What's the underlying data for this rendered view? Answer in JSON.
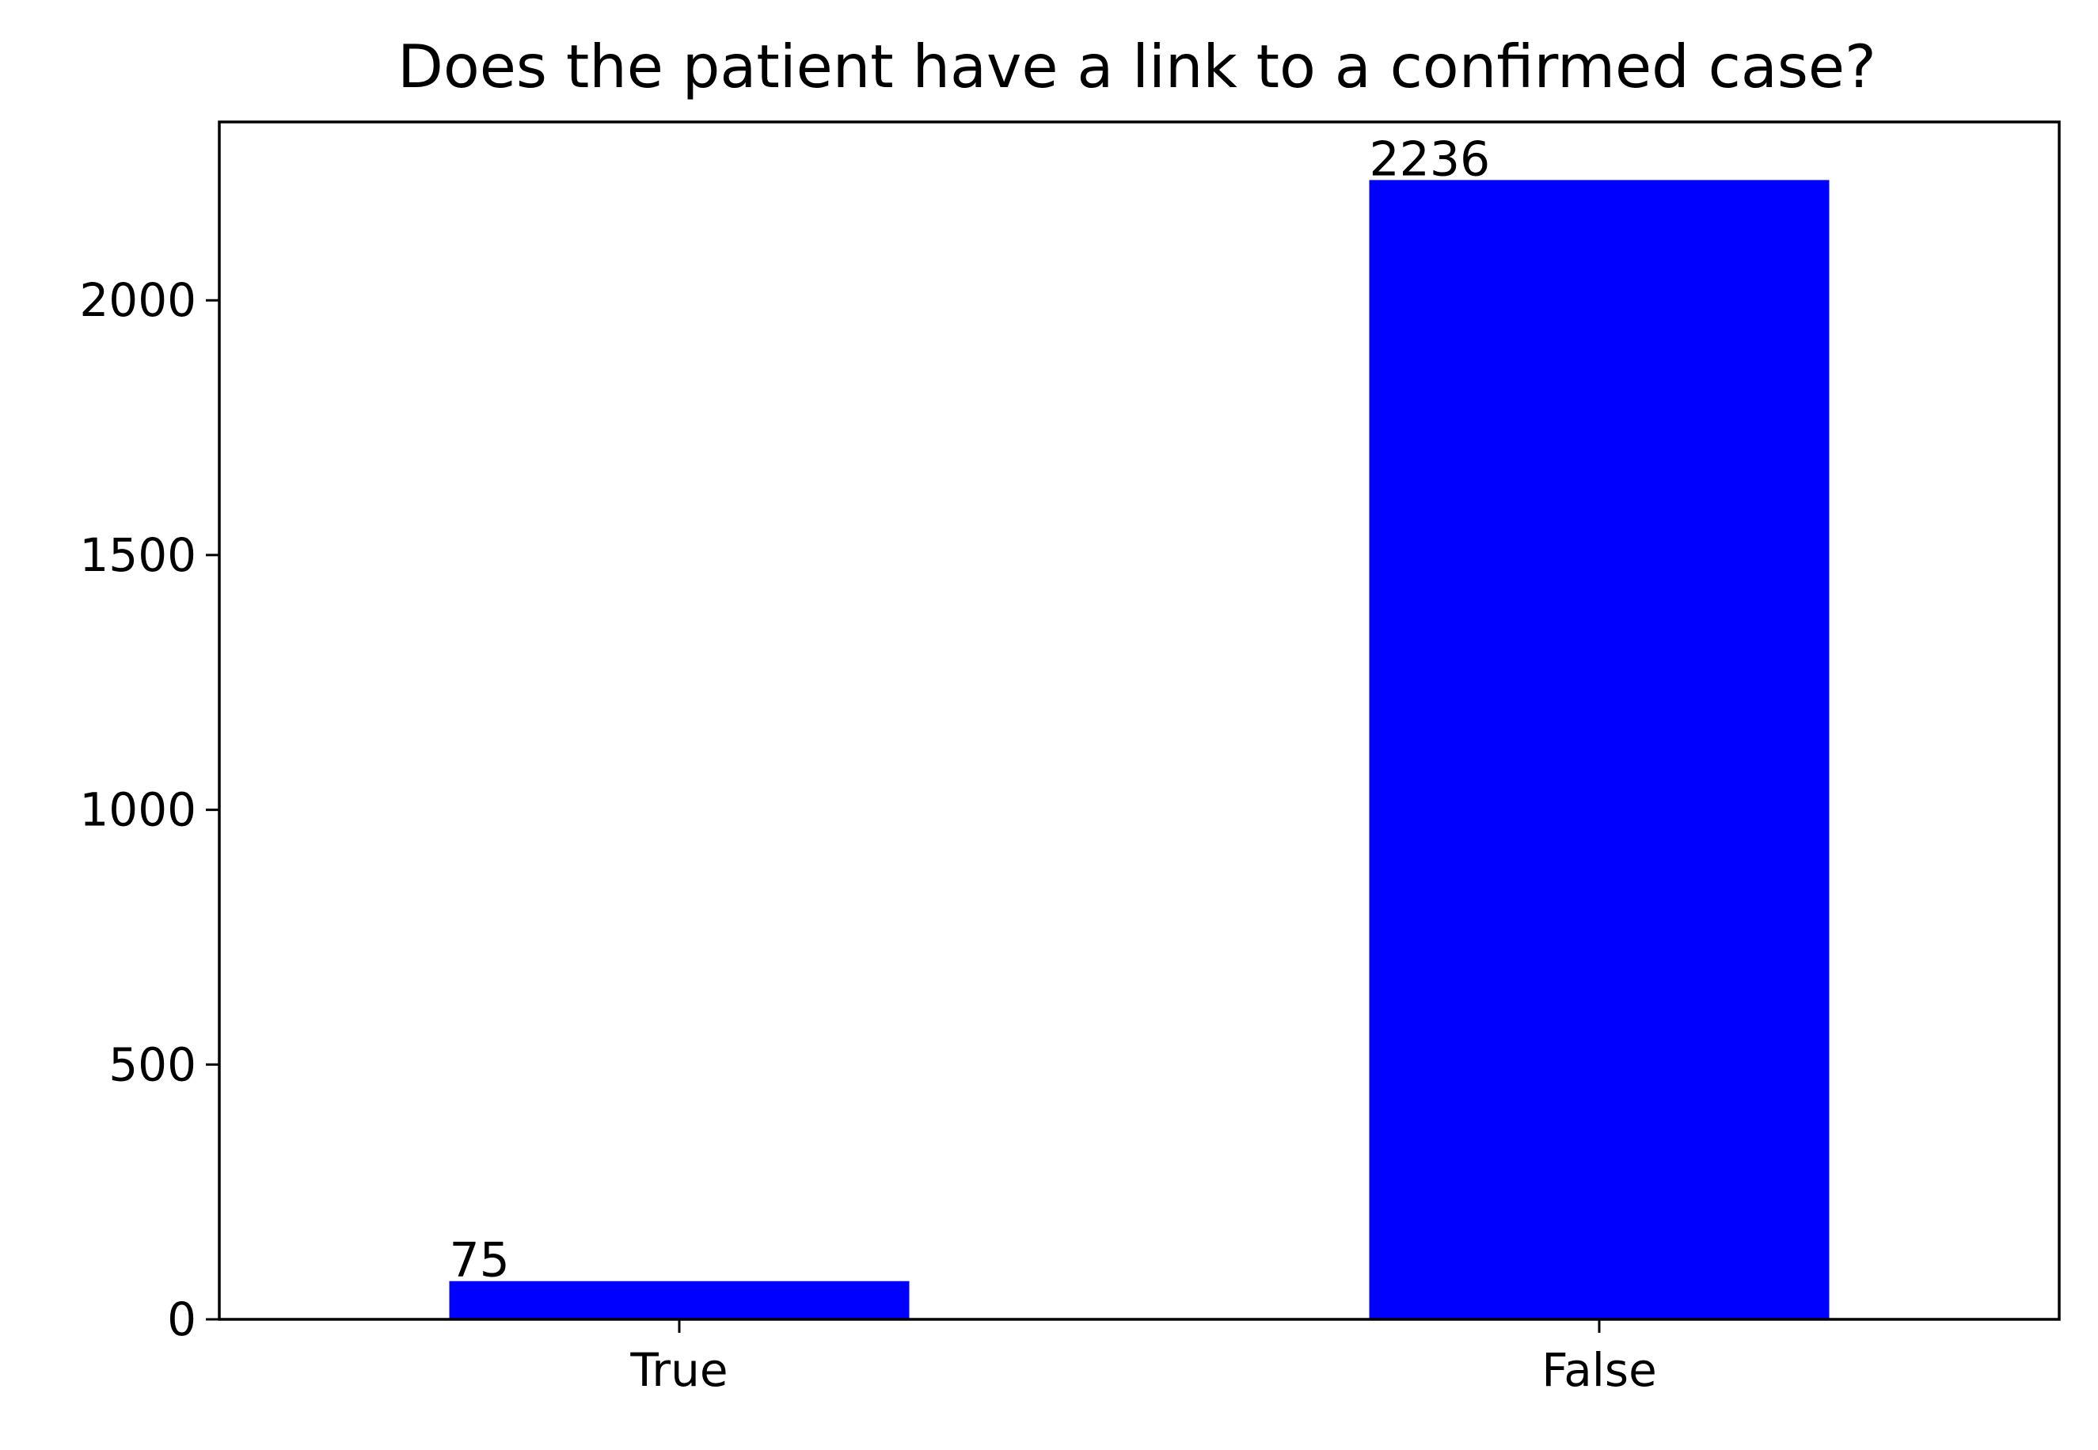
{
  "chart_data": {
    "type": "bar",
    "title": "Does the patient have a link to a confirmed case?",
    "xlabel": "",
    "ylabel": "",
    "categories": [
      "True",
      "False"
    ],
    "values": [
      75,
      2236
    ],
    "data_labels": [
      "75",
      "2236"
    ],
    "ylim": [
      0,
      2350
    ],
    "yticks": [
      0,
      500,
      1000,
      1500,
      2000
    ],
    "ytick_labels": [
      "0",
      "500",
      "1000",
      "1500",
      "2000"
    ],
    "grid": false,
    "legend": "none",
    "bar_color": "#0000ff",
    "axis_color": "#000000"
  }
}
